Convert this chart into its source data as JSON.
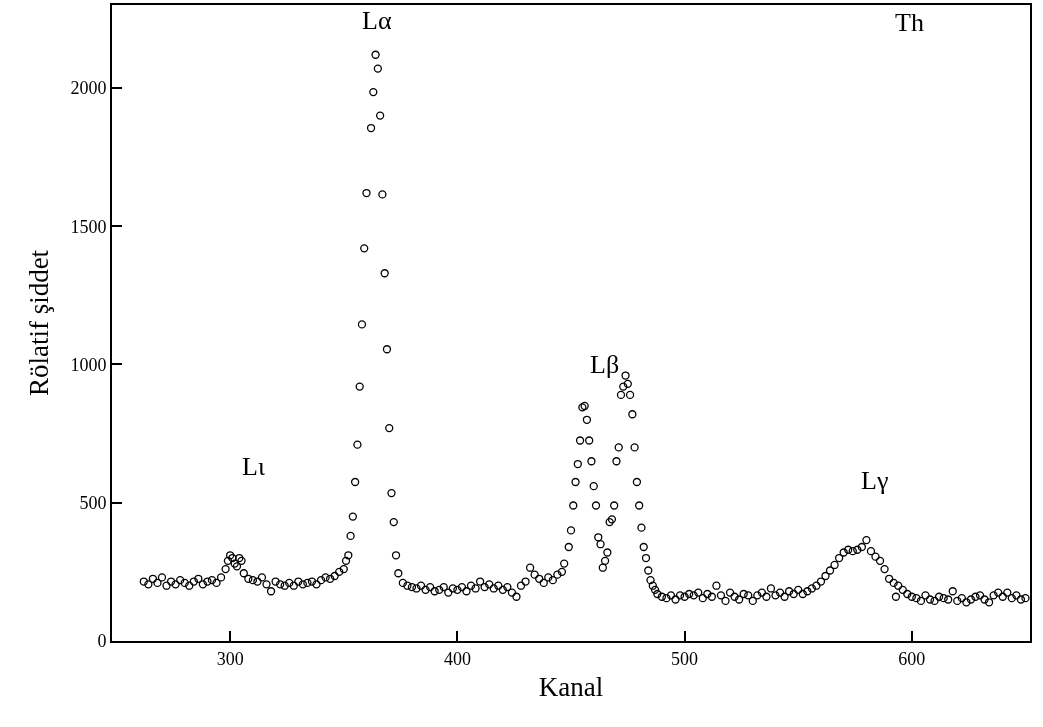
{
  "chart_data": {
    "type": "scatter",
    "xlabel": "Kanal",
    "ylabel": "Rölatif şiddet",
    "annotations": [
      "Lι",
      "Lα",
      "Lβ",
      "Lγ",
      "Th"
    ],
    "series": [
      {
        "color": "#000000",
        "x": [
          262,
          264,
          266,
          268,
          270,
          272,
          274,
          276,
          278,
          280,
          282,
          284,
          286,
          288,
          290,
          292,
          294,
          296,
          298,
          299,
          300,
          301,
          302,
          303,
          304,
          305,
          306,
          308,
          310,
          312,
          314,
          316,
          318,
          320,
          322,
          324,
          326,
          328,
          330,
          332,
          334,
          336,
          338,
          340,
          342,
          344,
          346,
          348,
          350,
          351,
          352,
          353,
          354,
          355,
          356,
          357,
          358,
          359,
          360,
          362,
          363,
          364,
          365,
          366,
          367,
          368,
          369,
          370,
          371,
          372,
          373,
          374,
          376,
          378,
          380,
          382,
          384,
          386,
          388,
          390,
          392,
          394,
          396,
          398,
          400,
          402,
          404,
          406,
          408,
          410,
          412,
          414,
          416,
          418,
          420,
          422,
          424,
          426,
          428,
          430,
          432,
          434,
          436,
          438,
          440,
          442,
          444,
          446,
          447,
          449,
          450,
          451,
          452,
          453,
          454,
          455,
          456,
          457,
          458,
          459,
          460,
          461,
          462,
          463,
          464,
          465,
          466,
          467,
          468,
          469,
          470,
          471,
          472,
          473,
          474,
          475,
          476,
          477,
          478,
          479,
          480,
          481,
          482,
          483,
          484,
          485,
          486,
          487,
          488,
          490,
          492,
          494,
          496,
          498,
          500,
          502,
          504,
          506,
          508,
          510,
          512,
          514,
          516,
          518,
          520,
          522,
          524,
          526,
          528,
          530,
          532,
          534,
          536,
          538,
          540,
          542,
          544,
          546,
          548,
          550,
          552,
          554,
          556,
          558,
          560,
          562,
          564,
          566,
          568,
          570,
          572,
          574,
          576,
          578,
          580,
          582,
          584,
          586,
          588,
          590,
          592,
          593,
          594,
          596,
          598,
          600,
          602,
          604,
          606,
          608,
          610,
          612,
          614,
          616,
          618,
          620,
          622,
          624,
          626,
          628,
          630,
          632,
          634,
          636,
          638,
          640,
          642,
          644,
          646,
          648,
          650
        ],
        "values": [
          215,
          205,
          225,
          210,
          230,
          200,
          215,
          205,
          220,
          210,
          200,
          215,
          225,
          205,
          215,
          220,
          210,
          230,
          260,
          290,
          310,
          300,
          280,
          270,
          300,
          290,
          245,
          225,
          220,
          215,
          230,
          205,
          180,
          215,
          205,
          200,
          210,
          200,
          215,
          205,
          210,
          215,
          205,
          220,
          230,
          225,
          235,
          250,
          260,
          290,
          310,
          380,
          450,
          575,
          710,
          920,
          1145,
          1420,
          1620,
          1855,
          1985,
          2120,
          2070,
          1900,
          1615,
          1330,
          1055,
          770,
          535,
          430,
          310,
          245,
          210,
          200,
          195,
          190,
          200,
          185,
          195,
          180,
          185,
          195,
          175,
          190,
          185,
          195,
          180,
          200,
          190,
          215,
          195,
          205,
          190,
          200,
          185,
          195,
          175,
          160,
          200,
          215,
          265,
          240,
          225,
          210,
          230,
          220,
          240,
          250,
          280,
          340,
          400,
          490,
          575,
          640,
          725,
          845,
          850,
          800,
          725,
          650,
          560,
          490,
          375,
          350,
          265,
          290,
          320,
          430,
          440,
          490,
          650,
          700,
          890,
          920,
          960,
          930,
          890,
          820,
          700,
          575,
          490,
          410,
          340,
          300,
          255,
          220,
          200,
          185,
          170,
          160,
          155,
          165,
          150,
          165,
          160,
          170,
          165,
          175,
          155,
          170,
          160,
          200,
          165,
          145,
          175,
          160,
          150,
          170,
          165,
          145,
          165,
          175,
          160,
          190,
          165,
          175,
          160,
          180,
          170,
          185,
          170,
          180,
          190,
          200,
          215,
          235,
          255,
          275,
          300,
          320,
          330,
          325,
          330,
          340,
          365,
          325,
          305,
          290,
          260,
          225,
          210,
          160,
          200,
          185,
          170,
          160,
          155,
          145,
          165,
          150,
          145,
          160,
          155,
          150,
          180,
          145,
          155,
          140,
          150,
          160,
          165,
          150,
          140,
          165,
          175,
          160,
          175,
          155,
          165,
          150,
          155
        ]
      }
    ],
    "marker": "circle",
    "grid": false,
    "xlim": [
      248,
      652
    ],
    "xticks": [
      300,
      400,
      500,
      600
    ],
    "ylim": [
      0,
      2300
    ],
    "yticks": [
      0,
      500,
      1000,
      1500,
      2000
    ]
  }
}
